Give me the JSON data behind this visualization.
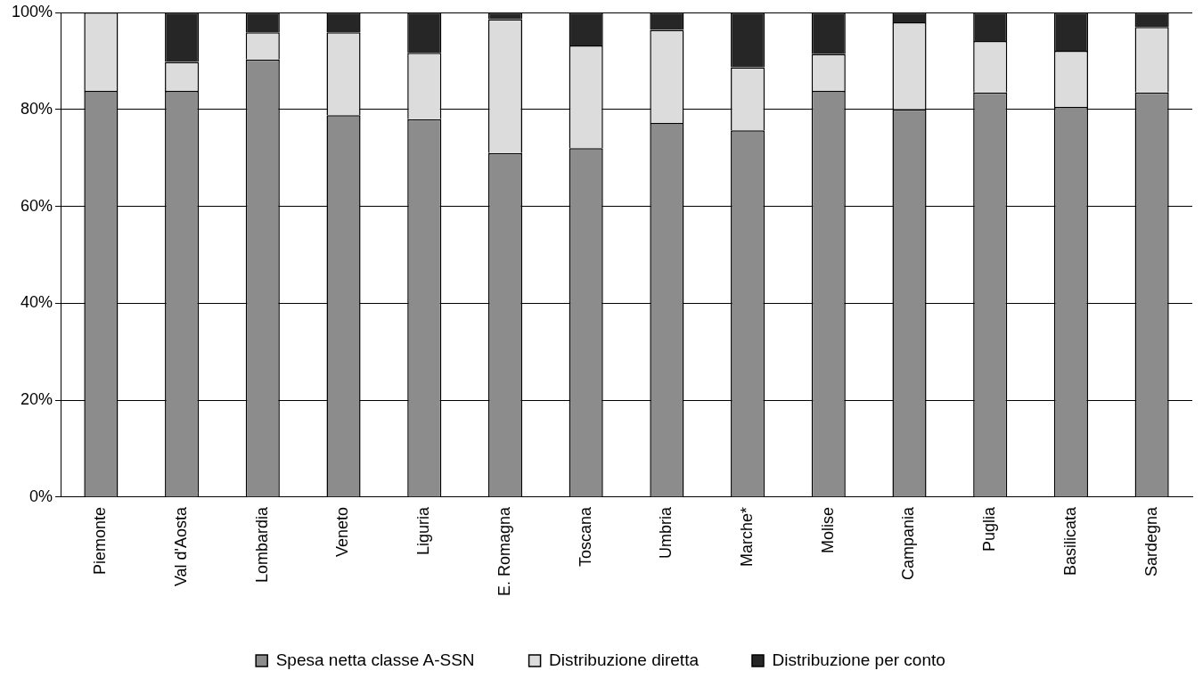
{
  "chart_data": {
    "type": "bar",
    "stacked": true,
    "categories": [
      "Piemonte",
      "Val d'Aosta",
      "Lombardia",
      "Veneto",
      "Liguria",
      "E. Romagna",
      "Toscana",
      "Umbria",
      "Marche*",
      "Molise",
      "Campania",
      "Puglia",
      "Basilicata",
      "Sardegna"
    ],
    "series": [
      {
        "name": "Spesa netta classe A-SSN",
        "color": "#8c8c8c",
        "values": [
          83.8,
          83.8,
          90.3,
          78.8,
          78.0,
          71.0,
          72.0,
          77.2,
          75.7,
          83.8,
          80.0,
          83.5,
          80.5,
          83.5
        ]
      },
      {
        "name": "Distribuzione diretta",
        "color": "#dcdcdc",
        "values": [
          16.2,
          6.0,
          5.6,
          17.1,
          13.7,
          27.6,
          21.2,
          19.2,
          13.0,
          7.6,
          18.0,
          10.6,
          11.6,
          13.5
        ]
      },
      {
        "name": "Distribuzione per conto",
        "color": "#262626",
        "values": [
          0,
          10.2,
          4.1,
          4.1,
          8.3,
          1.4,
          6.8,
          3.6,
          11.3,
          8.6,
          2.0,
          5.9,
          7.9,
          3.0
        ]
      }
    ],
    "ylim": [
      0,
      100
    ],
    "yticks": [
      {
        "value": 0,
        "label": "0%"
      },
      {
        "value": 20,
        "label": "20%"
      },
      {
        "value": 40,
        "label": "40%"
      },
      {
        "value": 60,
        "label": "60%"
      },
      {
        "value": 80,
        "label": "80%"
      },
      {
        "value": 100,
        "label": "100%"
      }
    ],
    "grid": "y",
    "legend": "bottom"
  }
}
